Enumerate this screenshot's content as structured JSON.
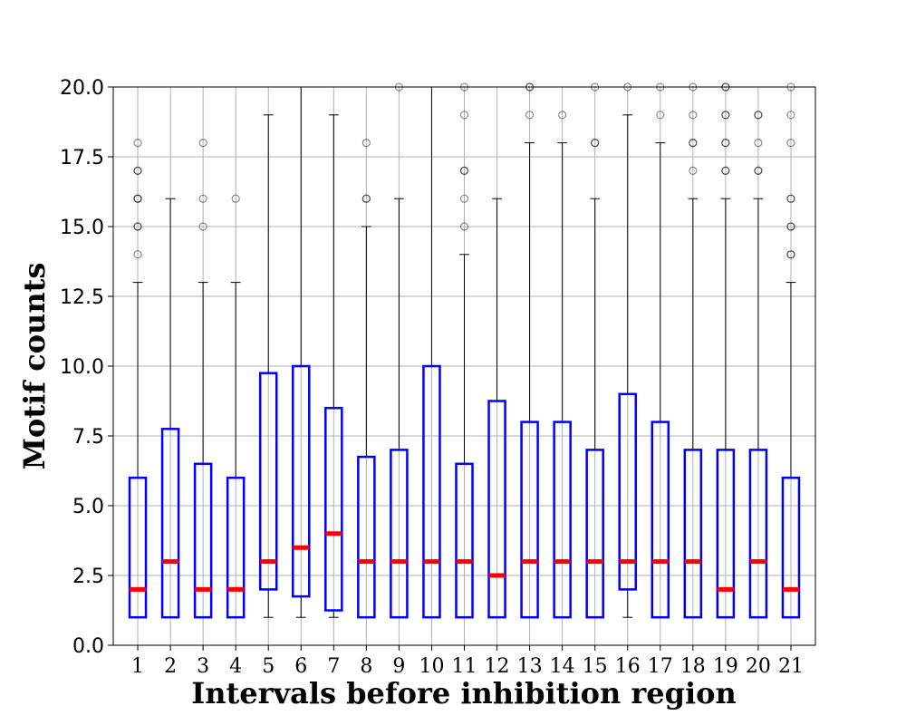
{
  "chart_data": {
    "type": "boxplot",
    "xlabel": "Intervals before inhibition region",
    "ylabel": "Motif counts",
    "ylim": [
      0,
      20
    ],
    "yticks": [
      "0.0",
      "2.5",
      "5.0",
      "7.5",
      "10.0",
      "12.5",
      "15.0",
      "17.5",
      "20.0"
    ],
    "grid": true,
    "colors": {
      "box": "#0000ff",
      "median": "#ff0000",
      "whisker": "#000000",
      "grid": "#b0b0b0",
      "flier": "#000000"
    },
    "categories": [
      "1",
      "2",
      "3",
      "4",
      "5",
      "6",
      "7",
      "8",
      "9",
      "10",
      "11",
      "12",
      "13",
      "14",
      "15",
      "16",
      "17",
      "18",
      "19",
      "20",
      "21"
    ],
    "boxes": [
      {
        "q1": 1,
        "median": 2,
        "q3": 6,
        "whislo": 1,
        "whishi": 13,
        "fliers": [
          14,
          15,
          15,
          16,
          16,
          16,
          17,
          17,
          18
        ]
      },
      {
        "q1": 1,
        "median": 3,
        "q3": 7.75,
        "whislo": 1,
        "whishi": 16,
        "fliers": []
      },
      {
        "q1": 1,
        "median": 2,
        "q3": 6.5,
        "whislo": 1,
        "whishi": 13,
        "fliers": [
          15,
          16,
          18
        ]
      },
      {
        "q1": 1,
        "median": 2,
        "q3": 6,
        "whislo": 1,
        "whishi": 13,
        "fliers": [
          16
        ]
      },
      {
        "q1": 2,
        "median": 3,
        "q3": 9.75,
        "whislo": 1,
        "whishi": 19,
        "fliers": []
      },
      {
        "q1": 1.75,
        "median": 3.5,
        "q3": 10,
        "whislo": 1,
        "whishi": 20,
        "fliers": []
      },
      {
        "q1": 1.25,
        "median": 4,
        "q3": 8.5,
        "whislo": 1,
        "whishi": 19,
        "fliers": []
      },
      {
        "q1": 1,
        "median": 3,
        "q3": 6.75,
        "whislo": 1,
        "whishi": 15,
        "fliers": [
          16,
          16,
          18
        ]
      },
      {
        "q1": 1,
        "median": 3,
        "q3": 7,
        "whislo": 1,
        "whishi": 16,
        "fliers": [
          20
        ]
      },
      {
        "q1": 1,
        "median": 3,
        "q3": 10,
        "whislo": 1,
        "whishi": 20,
        "fliers": []
      },
      {
        "q1": 1,
        "median": 3,
        "q3": 6.5,
        "whislo": 1,
        "whishi": 14,
        "fliers": [
          15,
          16,
          17,
          17,
          19,
          20
        ]
      },
      {
        "q1": 1,
        "median": 2.5,
        "q3": 8.75,
        "whislo": 1,
        "whishi": 16,
        "fliers": []
      },
      {
        "q1": 1,
        "median": 3,
        "q3": 8,
        "whislo": 1,
        "whishi": 18,
        "fliers": [
          19,
          20,
          20
        ]
      },
      {
        "q1": 1,
        "median": 3,
        "q3": 8,
        "whislo": 1,
        "whishi": 18,
        "fliers": [
          19
        ]
      },
      {
        "q1": 1,
        "median": 3,
        "q3": 7,
        "whislo": 1,
        "whishi": 16,
        "fliers": [
          18,
          18,
          20
        ]
      },
      {
        "q1": 2,
        "median": 3,
        "q3": 9,
        "whislo": 1,
        "whishi": 19,
        "fliers": [
          20
        ]
      },
      {
        "q1": 1,
        "median": 3,
        "q3": 8,
        "whislo": 1,
        "whishi": 18,
        "fliers": [
          19,
          20
        ]
      },
      {
        "q1": 1,
        "median": 3,
        "q3": 7,
        "whislo": 1,
        "whishi": 16,
        "fliers": [
          17,
          18,
          18,
          19,
          20
        ]
      },
      {
        "q1": 1,
        "median": 2,
        "q3": 7,
        "whislo": 1,
        "whishi": 16,
        "fliers": [
          17,
          17,
          18,
          18,
          19,
          19,
          20,
          20
        ]
      },
      {
        "q1": 1,
        "median": 3,
        "q3": 7,
        "whislo": 1,
        "whishi": 16,
        "fliers": [
          17,
          17,
          18,
          19,
          19
        ]
      },
      {
        "q1": 1,
        "median": 2,
        "q3": 6,
        "whislo": 1,
        "whishi": 13,
        "fliers": [
          14,
          14,
          15,
          15,
          16,
          16,
          18,
          19,
          20
        ]
      }
    ]
  }
}
